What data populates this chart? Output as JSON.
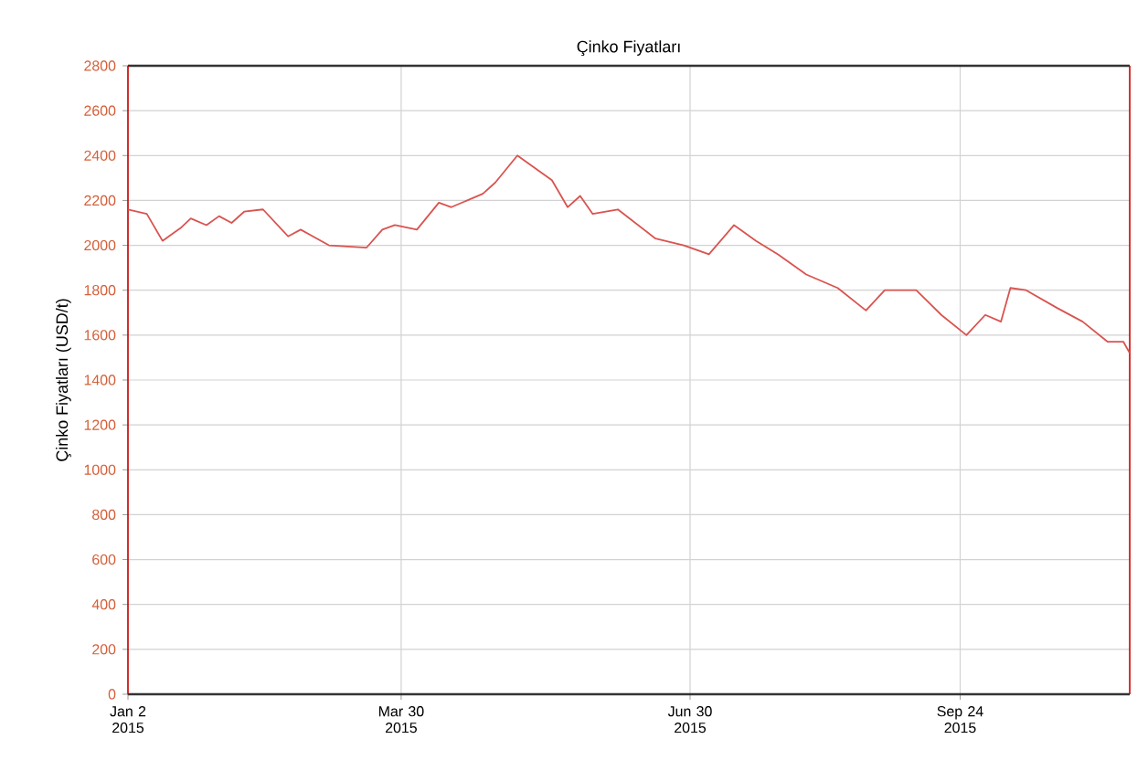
{
  "chart_data": {
    "type": "line",
    "title": "Çinko Fiyatları",
    "ylabel": "Çinko Fiyatları (USD/t)",
    "x": [
      "2015-01-02",
      "2015-01-08",
      "2015-01-13",
      "2015-01-19",
      "2015-01-22",
      "2015-01-27",
      "2015-01-31",
      "2015-02-04",
      "2015-02-08",
      "2015-02-14",
      "2015-02-22",
      "2015-02-26",
      "2015-03-07",
      "2015-03-19",
      "2015-03-24",
      "2015-03-28",
      "2015-04-04",
      "2015-04-11",
      "2015-04-15",
      "2015-04-25",
      "2015-04-29",
      "2015-05-06",
      "2015-05-12",
      "2015-05-17",
      "2015-05-22",
      "2015-05-26",
      "2015-05-30",
      "2015-06-07",
      "2015-06-19",
      "2015-06-28",
      "2015-07-06",
      "2015-07-14",
      "2015-07-21",
      "2015-07-28",
      "2015-08-06",
      "2015-08-16",
      "2015-08-25",
      "2015-08-31",
      "2015-09-10",
      "2015-09-18",
      "2015-09-26",
      "2015-10-02",
      "2015-10-07",
      "2015-10-10",
      "2015-10-15",
      "2015-10-25",
      "2015-11-02",
      "2015-11-10",
      "2015-11-15",
      "2015-11-17"
    ],
    "series": [
      {
        "color": "#d9534f",
        "values": [
          2160,
          2140,
          2020,
          2080,
          2120,
          2090,
          2130,
          2100,
          2150,
          2160,
          2040,
          2070,
          2000,
          1990,
          2070,
          2090,
          2070,
          2190,
          2170,
          2230,
          2280,
          2400,
          2340,
          2290,
          2170,
          2220,
          2140,
          2160,
          2030,
          2000,
          1960,
          2090,
          2020,
          1960,
          1870,
          1810,
          1710,
          1800,
          1800,
          1690,
          1600,
          1690,
          1660,
          1810,
          1800,
          1720,
          1660,
          1570,
          1570,
          1520
        ]
      }
    ],
    "xlim": [
      "2015-01-02",
      "2015-11-17"
    ],
    "xticks": [
      {
        "value": "2015-01-02",
        "label": "Jan 2 2015"
      },
      {
        "value": "2015-03-30",
        "label": "Mar 30 2015"
      },
      {
        "value": "2015-06-30",
        "label": "Jun 30 2015"
      },
      {
        "value": "2015-09-24",
        "label": "Sep 24 2015"
      }
    ],
    "ylim": [
      0,
      2800
    ],
    "yticks": [
      0,
      200,
      400,
      600,
      800,
      1000,
      1200,
      1400,
      1600,
      1800,
      2000,
      2200,
      2400,
      2600,
      2800
    ],
    "grid": true,
    "marker": "none",
    "line_style": "solid"
  }
}
